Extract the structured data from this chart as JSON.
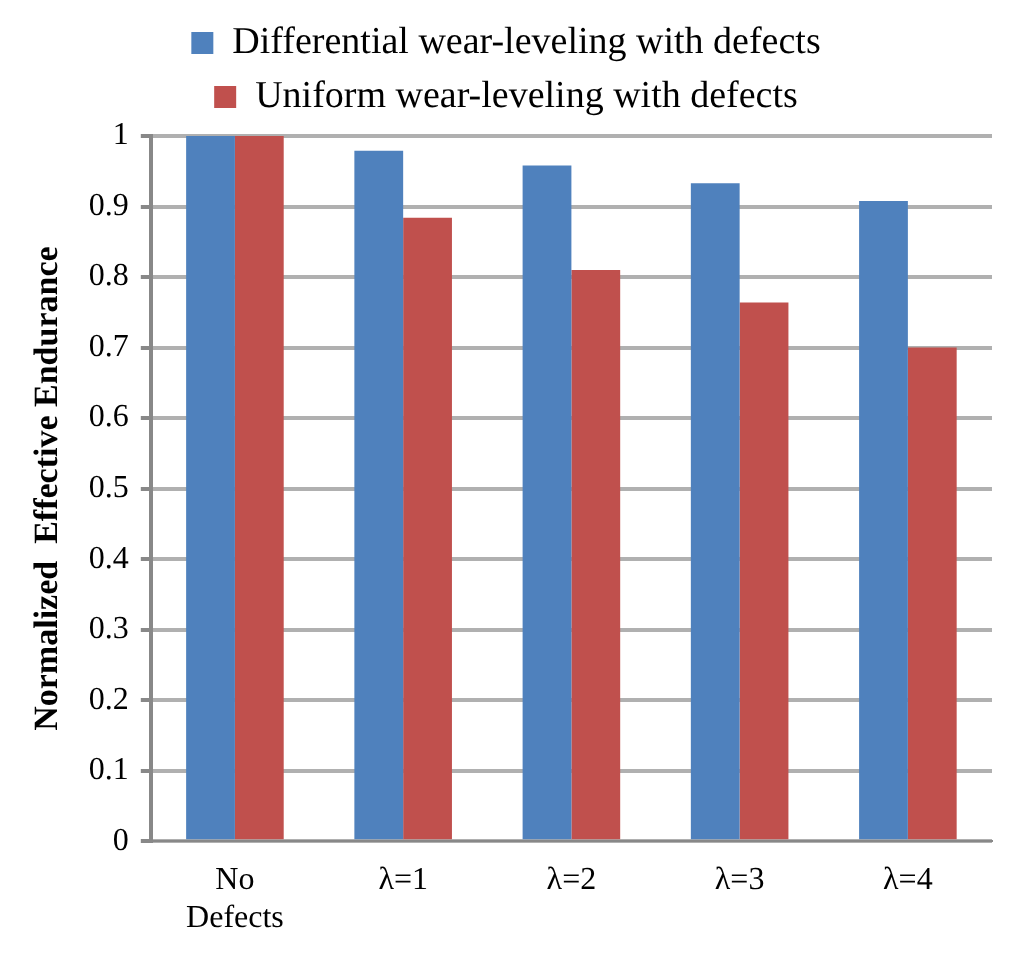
{
  "chart_data": {
    "type": "bar",
    "ylabel": "Normalized  Effective Endurance",
    "categories": [
      "No Defects",
      "λ=1",
      "λ=2",
      "λ=3",
      "λ=4"
    ],
    "series": [
      {
        "name": "Differential wear-leveling with defects",
        "color": "#4f81bd",
        "values": [
          1,
          0.979,
          0.958,
          0.933,
          0.908
        ]
      },
      {
        "name": "Uniform wear-leveling with defects",
        "color": "#c0504d",
        "values": [
          1,
          0.884,
          0.81,
          0.764,
          0.7
        ]
      }
    ],
    "ylim": [
      0,
      1
    ],
    "yticks": [
      0,
      0.1,
      0.2,
      0.3,
      0.4,
      0.5,
      0.6,
      0.7,
      0.8,
      0.9,
      1
    ],
    "grid": "y",
    "legend": "top"
  }
}
